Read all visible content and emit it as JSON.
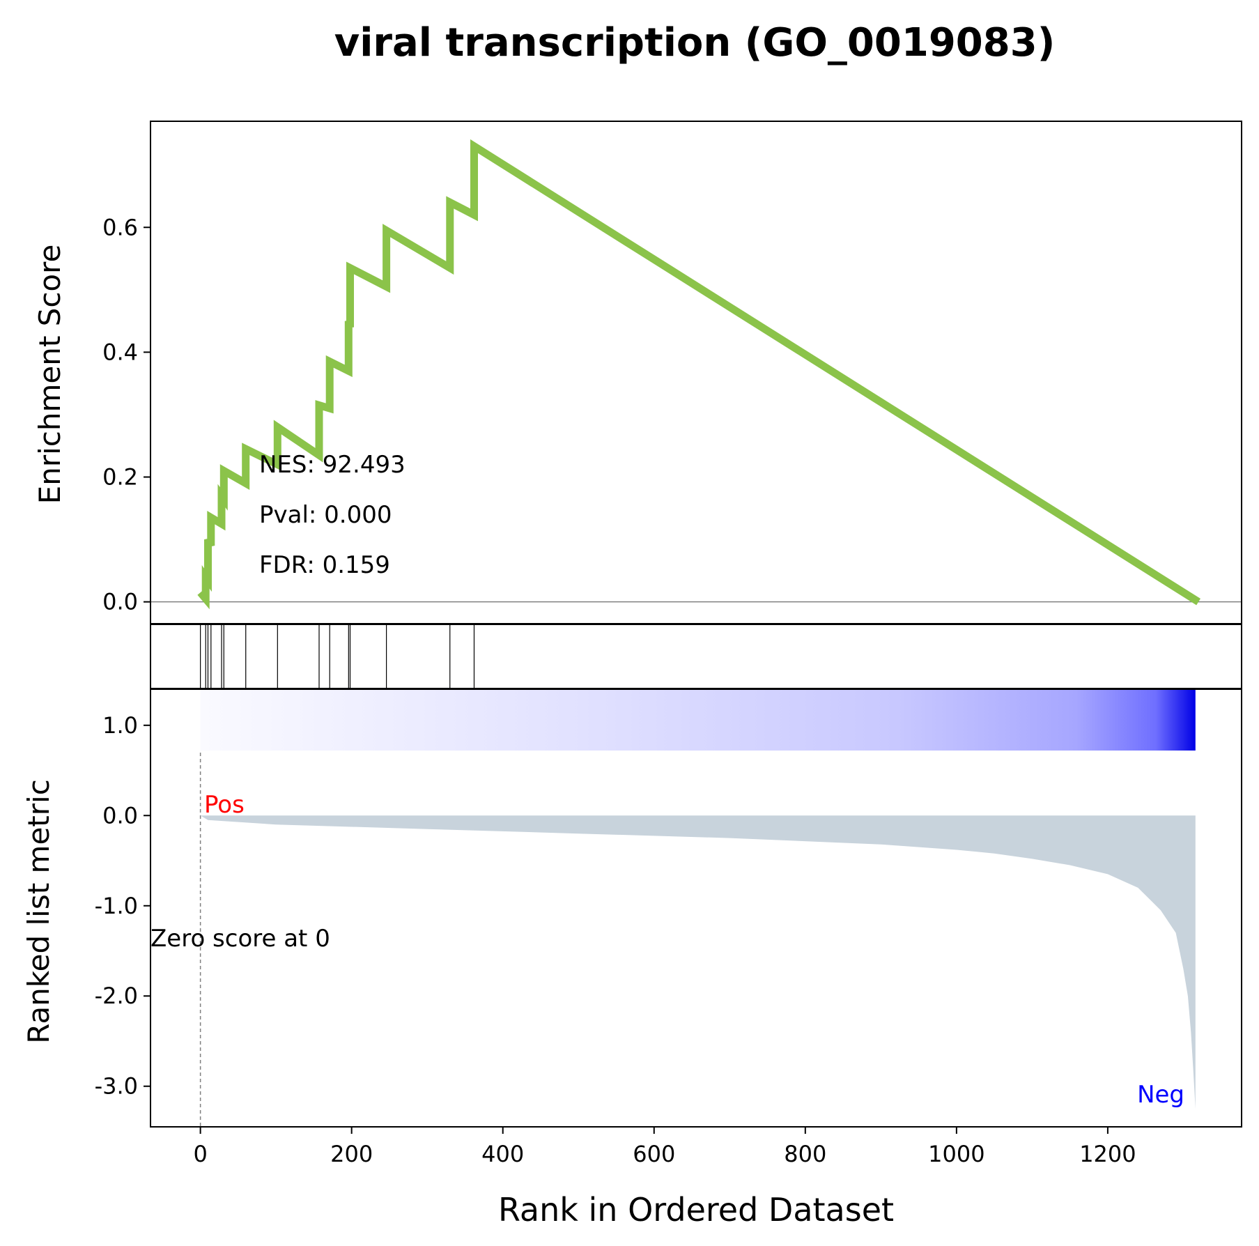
{
  "chart_data": {
    "type": "line",
    "title": "viral transcription (GO_0019083)",
    "xlabel": "Rank in Ordered Dataset",
    "xlim": [
      -66,
      1377
    ],
    "x_ticks": [
      "0",
      "200",
      "400",
      "600",
      "800",
      "1000",
      "1200"
    ],
    "line_color": "#8bc34a",
    "bar_color": "#0000ff",
    "fill_color": "#c8d3dc",
    "es_panel": {
      "ylabel": "Enrichment Score",
      "ylim": [
        -0.035,
        0.77
      ],
      "y_ticks": [
        "0.0",
        "0.2",
        "0.4",
        "0.6"
      ],
      "running_es": {
        "x": [
          0,
          7,
          7,
          10,
          10,
          14,
          14,
          28,
          28,
          31,
          31,
          60,
          60,
          102,
          102,
          157,
          157,
          171,
          171,
          196,
          196,
          198,
          198,
          246,
          246,
          330,
          330,
          362,
          362,
          1320
        ],
        "y": [
          0.015,
          0.005,
          0.04,
          0.035,
          0.1,
          0.09,
          0.135,
          0.125,
          0.17,
          0.165,
          0.21,
          0.19,
          0.245,
          0.22,
          0.28,
          0.235,
          0.315,
          0.31,
          0.385,
          0.37,
          0.45,
          0.44,
          0.535,
          0.505,
          0.595,
          0.535,
          0.64,
          0.62,
          0.73,
          0.0
        ]
      },
      "stats": {
        "nes": "NES: 92.493",
        "pval": "Pval: 0.000",
        "fdr": "FDR: 0.159"
      }
    },
    "hits": [
      0,
      7,
      10,
      14,
      28,
      31,
      60,
      102,
      157,
      171,
      196,
      198,
      246,
      330,
      362
    ],
    "metric_panel": {
      "ylabel": "Ranked list metric",
      "ylim": [
        -3.45,
        1.4
      ],
      "y_ticks": [
        "1.0",
        "0.0",
        "-1.0",
        "-2.0",
        "-3.0"
      ],
      "pos_label": "Pos",
      "neg_label": "Neg",
      "zero_label": "Zero score at 0",
      "metric": {
        "x": [
          0,
          10,
          100,
          300,
          500,
          700,
          900,
          1000,
          1050,
          1100,
          1150,
          1200,
          1240,
          1270,
          1290,
          1300,
          1306,
          1310,
          1313,
          1315,
          1316
        ],
        "y": [
          0.0,
          -0.05,
          -0.1,
          -0.15,
          -0.2,
          -0.25,
          -0.32,
          -0.38,
          -0.42,
          -0.48,
          -0.55,
          -0.65,
          -0.8,
          -1.05,
          -1.3,
          -1.7,
          -2.0,
          -2.4,
          -2.8,
          -3.1,
          -3.25
        ]
      }
    }
  }
}
